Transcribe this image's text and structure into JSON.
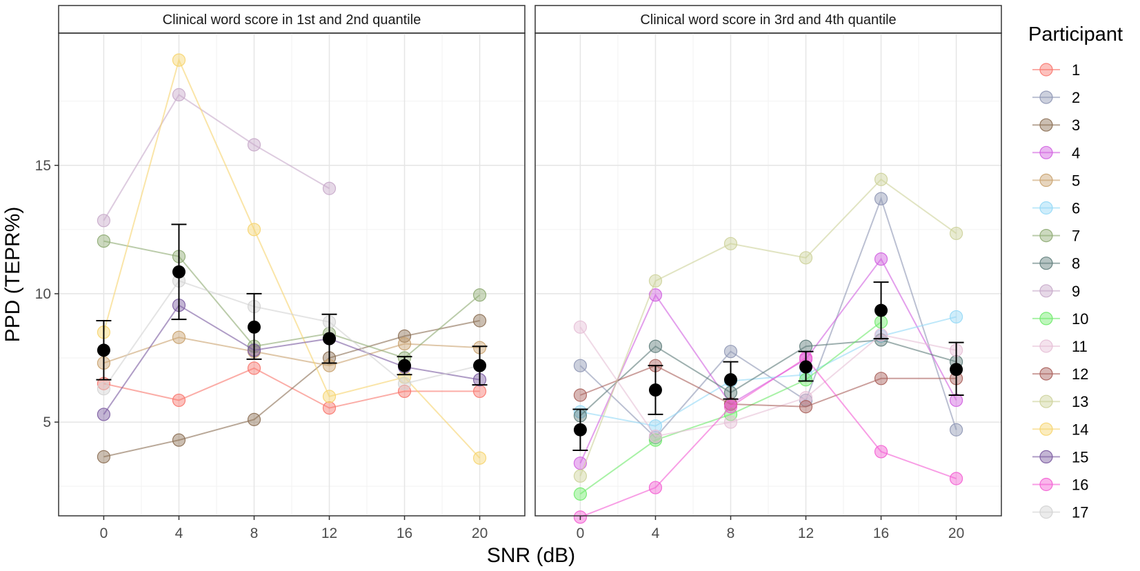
{
  "chart_data": {
    "type": "line",
    "xlabel": "SNR (dB)",
    "ylabel": "PPD (TEPR%)",
    "x": [
      0,
      4,
      8,
      12,
      16,
      20
    ],
    "xlim": [
      -2.4,
      22.4
    ],
    "ylim": [
      1.35,
      20.15
    ],
    "y_ticks": [
      5,
      10,
      15
    ],
    "legend_title": "Participant",
    "legend_position": "right",
    "participants": [
      {
        "id": "1",
        "color": "#F8766D"
      },
      {
        "id": "2",
        "color": "#8E96B4"
      },
      {
        "id": "3",
        "color": "#8B6E53"
      },
      {
        "id": "4",
        "color": "#D05FE0"
      },
      {
        "id": "5",
        "color": "#C9A26E"
      },
      {
        "id": "6",
        "color": "#93D8F6"
      },
      {
        "id": "7",
        "color": "#8DAA72"
      },
      {
        "id": "8",
        "color": "#5E7C7A"
      },
      {
        "id": "9",
        "color": "#C7A9C9"
      },
      {
        "id": "10",
        "color": "#6EEA6A"
      },
      {
        "id": "11",
        "color": "#E6BFD6"
      },
      {
        "id": "12",
        "color": "#A85F5A"
      },
      {
        "id": "13",
        "color": "#CDD29A"
      },
      {
        "id": "14",
        "color": "#F6D46E"
      },
      {
        "id": "15",
        "color": "#7A5AA0"
      },
      {
        "id": "16",
        "color": "#F35ED3"
      },
      {
        "id": "17",
        "color": "#D2D2D2"
      }
    ],
    "panels": [
      {
        "title": "Clinical word score in 1st and 2nd quantile",
        "series": [
          {
            "participant": "1",
            "values": [
              6.5,
              5.85,
              7.1,
              5.55,
              6.2,
              6.2
            ]
          },
          {
            "participant": "3",
            "values": [
              3.65,
              4.3,
              5.1,
              7.5,
              8.35,
              8.95
            ]
          },
          {
            "participant": "5",
            "values": [
              7.3,
              8.3,
              7.75,
              7.2,
              8.05,
              7.9
            ]
          },
          {
            "participant": "7",
            "values": [
              12.05,
              11.45,
              7.95,
              8.45,
              7.5,
              9.95
            ]
          },
          {
            "participant": "9",
            "values": [
              12.85,
              17.75,
              15.8,
              14.1,
              null,
              null
            ]
          },
          {
            "participant": "14",
            "values": [
              8.5,
              19.1,
              12.5,
              6.0,
              6.75,
              3.6
            ]
          },
          {
            "participant": "15",
            "values": [
              5.3,
              9.55,
              7.8,
              8.25,
              7.15,
              6.65
            ]
          },
          {
            "participant": "17",
            "values": [
              6.3,
              10.5,
              9.5,
              8.9,
              6.5,
              7.2
            ]
          }
        ],
        "mean": [
          7.8,
          10.85,
          8.7,
          8.25,
          7.2,
          7.2
        ],
        "error_low": [
          6.65,
          9.0,
          7.45,
          7.3,
          6.85,
          6.45
        ],
        "error_high": [
          8.95,
          12.7,
          10.0,
          9.2,
          7.55,
          7.95
        ]
      },
      {
        "title": "Clinical word score in 3rd and 4th quantile",
        "series": [
          {
            "participant": "2",
            "values": [
              7.2,
              4.4,
              7.75,
              5.85,
              13.7,
              4.7
            ]
          },
          {
            "participant": "4",
            "values": [
              3.4,
              9.95,
              5.7,
              7.45,
              11.35,
              5.85
            ]
          },
          {
            "participant": "6",
            "values": [
              5.4,
              4.85,
              6.6,
              6.85,
              8.35,
              9.1
            ]
          },
          {
            "participant": "8",
            "values": [
              5.25,
              7.95,
              6.15,
              7.95,
              8.2,
              7.35
            ]
          },
          {
            "participant": "10",
            "values": [
              2.2,
              4.3,
              5.3,
              6.65,
              8.9,
              null
            ]
          },
          {
            "participant": "11",
            "values": [
              8.7,
              4.45,
              5.0,
              5.95,
              8.4,
              7.8
            ]
          },
          {
            "participant": "12",
            "values": [
              6.05,
              7.2,
              5.7,
              5.6,
              6.7,
              6.7
            ]
          },
          {
            "participant": "13",
            "values": [
              2.9,
              10.5,
              11.95,
              11.4,
              14.45,
              12.35
            ]
          },
          {
            "participant": "16",
            "values": [
              1.3,
              2.45,
              5.6,
              7.5,
              3.85,
              2.8
            ]
          }
        ],
        "mean": [
          4.7,
          6.25,
          6.65,
          7.15,
          9.35,
          7.05
        ],
        "error_low": [
          3.9,
          5.3,
          5.9,
          6.6,
          8.25,
          6.05
        ],
        "error_high": [
          5.5,
          7.2,
          7.35,
          7.75,
          10.45,
          8.1
        ]
      }
    ]
  }
}
